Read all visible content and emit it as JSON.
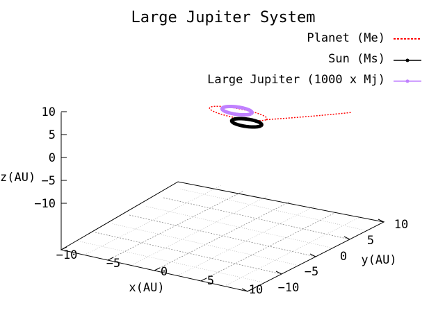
{
  "chart_data": {
    "type": "line",
    "projection": "3d",
    "title": "Large Jupiter System",
    "xlabel": "x(AU)",
    "ylabel": "y(AU)",
    "zlabel": "z(AU)",
    "xlim": [
      -10,
      10
    ],
    "ylim": [
      -10,
      10
    ],
    "zlim": [
      -10,
      10
    ],
    "x_ticks": [
      "−10",
      "−5",
      "0",
      "5",
      "10"
    ],
    "y_ticks": [
      "−10",
      "−5",
      "0",
      "5",
      "10"
    ],
    "z_ticks": [
      "10",
      "5",
      "0",
      "−5",
      "−10"
    ],
    "grid": true,
    "legend_position": "top-right",
    "series": [
      {
        "name": "Planet (Me)",
        "color": "#ff0000",
        "style": "dotted",
        "description_values": {
          "loop_center": [
            -0.5,
            3.0,
            0.0
          ],
          "loop_radius_x": 3.0,
          "loop_radius_y": 1.0,
          "escape_end": [
            9.5,
            6.0,
            2.5
          ]
        }
      },
      {
        "name": "Sun (Ms)",
        "color": "#000000",
        "style": "solid-points",
        "description_values": {
          "loop_center": [
            1.5,
            1.5,
            0.0
          ],
          "loop_radius_x": 1.5,
          "loop_radius_y": 0.8
        }
      },
      {
        "name": "Large Jupiter (1000 x Mj)",
        "color": "#c080ff",
        "style": "solid-points",
        "description_values": {
          "loop_center": [
            -1.0,
            3.5,
            0.0
          ],
          "loop_radius_x": 1.5,
          "loop_radius_y": 0.8
        }
      }
    ]
  }
}
